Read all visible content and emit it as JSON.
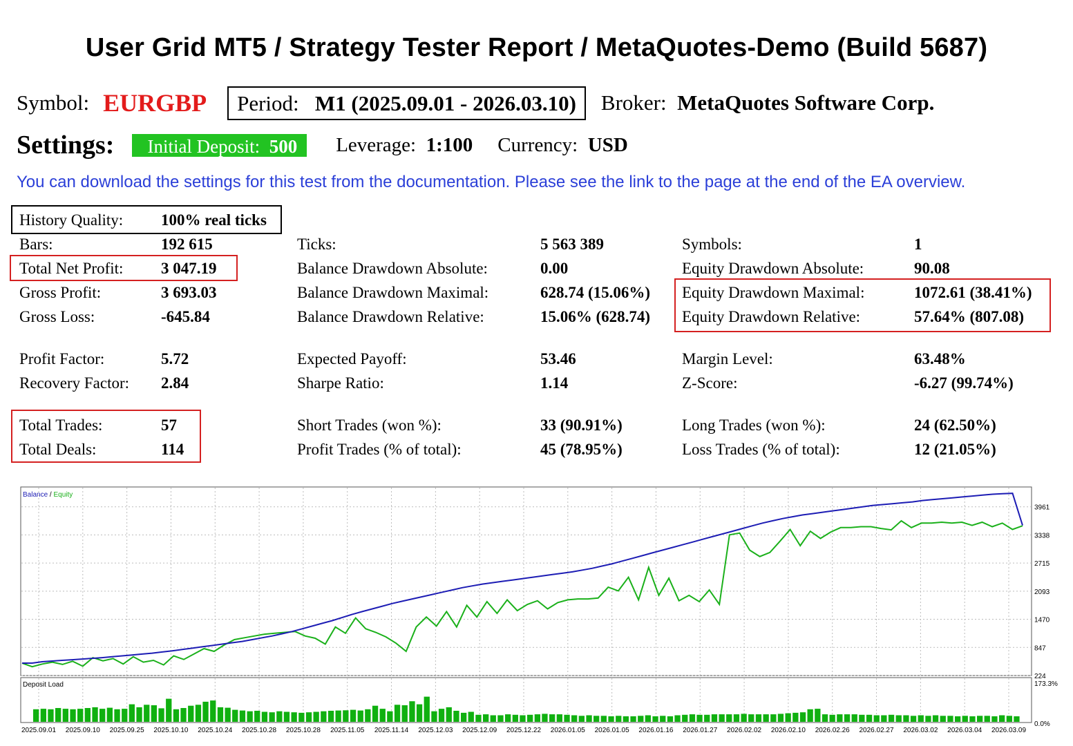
{
  "report": {
    "title": "User Grid MT5  /  Strategy Tester Report  /  MetaQuotes-Demo (Build 5687)",
    "symbol_label": "Symbol:",
    "symbol": "EURGBP",
    "period_label": "Period:",
    "period": "M1 (2025.09.01 - 2026.03.10)",
    "broker_label": "Broker:",
    "broker": "MetaQuotes Software Corp.",
    "settings_label": "Settings:",
    "deposit_label": "Initial Deposit:",
    "deposit": "500",
    "leverage_label": "Leverage:",
    "leverage": "1:100",
    "currency_label": "Currency:",
    "currency": "USD",
    "note": "You can download the settings for this test from the documentation. Please see the link to the page at the end of the EA overview."
  },
  "stats": [
    {
      "label": "History Quality:",
      "value": "100% real ticks"
    },
    {
      "label": "Bars:",
      "value": "192 615"
    },
    {
      "label": "Total Net Profit:",
      "value": "3 047.19"
    },
    {
      "label": "Gross Profit:",
      "value": "3 693.03"
    },
    {
      "label": "Gross Loss:",
      "value": "-645.84"
    },
    {
      "label": "Profit Factor:",
      "value": "5.72"
    },
    {
      "label": "Recovery Factor:",
      "value": "2.84"
    },
    {
      "label": "Total Trades:",
      "value": "57"
    },
    {
      "label": "Total Deals:",
      "value": "114"
    },
    {
      "label": "Ticks:",
      "value": "5 563 389"
    },
    {
      "label": "Balance Drawdown Absolute:",
      "value": "0.00"
    },
    {
      "label": "Balance Drawdown Maximal:",
      "value": "628.74 (15.06%)"
    },
    {
      "label": "Balance Drawdown Relative:",
      "value": "15.06% (628.74)"
    },
    {
      "label": "Expected Payoff:",
      "value": "53.46"
    },
    {
      "label": "Sharpe Ratio:",
      "value": "1.14"
    },
    {
      "label": "Short Trades (won %):",
      "value": "33 (90.91%)"
    },
    {
      "label": "Profit Trades (% of total):",
      "value": "45 (78.95%)"
    },
    {
      "label": "Symbols:",
      "value": "1"
    },
    {
      "label": "Equity Drawdown Absolute:",
      "value": "90.08"
    },
    {
      "label": "Equity Drawdown Maximal:",
      "value": "1072.61 (38.41%)"
    },
    {
      "label": "Equity Drawdown Relative:",
      "value": "57.64% (807.08)"
    },
    {
      "label": "Margin Level:",
      "value": "63.48%"
    },
    {
      "label": "Z-Score:",
      "value": "-6.27 (99.74%)"
    },
    {
      "label": "Long Trades (won %):",
      "value": "24 (62.50%)"
    },
    {
      "label": "Loss Trades (% of total):",
      "value": "12 (21.05%)"
    }
  ],
  "chart_data": {
    "type": "line",
    "legend": {
      "balance": "Balance",
      "separator": " / ",
      "equity": "Equity"
    },
    "y_ticks": [
      "3961",
      "3338",
      "2715",
      "2093",
      "1470",
      "847",
      "224"
    ],
    "y_tick_values": [
      3961,
      3338,
      2715,
      2093,
      1470,
      847,
      224
    ],
    "ylim": [
      224,
      4400
    ],
    "grid": true,
    "series": [
      {
        "name": "Balance",
        "color": "#1c1cb4",
        "values": [
          500,
          500,
          530,
          545,
          560,
          575,
          590,
          605,
          620,
          640,
          660,
          680,
          700,
          720,
          745,
          770,
          800,
          830,
          860,
          890,
          920,
          950,
          980,
          1020,
          1060,
          1100,
          1150,
          1200,
          1260,
          1320,
          1380,
          1440,
          1510,
          1580,
          1640,
          1700,
          1760,
          1820,
          1870,
          1920,
          1970,
          2020,
          2070,
          2120,
          2170,
          2210,
          2250,
          2280,
          2310,
          2340,
          2370,
          2400,
          2430,
          2460,
          2490,
          2520,
          2560,
          2600,
          2650,
          2700,
          2760,
          2820,
          2880,
          2940,
          3000,
          3060,
          3120,
          3180,
          3240,
          3300,
          3360,
          3420,
          3480,
          3540,
          3600,
          3650,
          3700,
          3740,
          3780,
          3810,
          3840,
          3870,
          3900,
          3930,
          3960,
          3990,
          4010,
          4030,
          4050,
          4070,
          4100,
          4120,
          4140,
          4160,
          4180,
          4200,
          4220,
          4240,
          4250,
          4260,
          3550
        ]
      },
      {
        "name": "Equity",
        "color": "#1ab01a",
        "values": [
          500,
          420,
          480,
          520,
          470,
          540,
          430,
          620,
          550,
          600,
          480,
          640,
          520,
          560,
          460,
          660,
          580,
          700,
          820,
          760,
          900,
          1020,
          1060,
          1100,
          1140,
          1160,
          1180,
          1200,
          1100,
          1050,
          920,
          1300,
          1160,
          1500,
          1260,
          1180,
          1080,
          940,
          760,
          1300,
          1520,
          1320,
          1640,
          1300,
          1780,
          1520,
          1860,
          1600,
          1900,
          1660,
          1800,
          1880,
          1700,
          1840,
          1900,
          1920,
          1920,
          1940,
          2180,
          2100,
          2400,
          1900,
          2620,
          2000,
          2380,
          1880,
          2000,
          1860,
          2120,
          1800,
          3340,
          3380,
          3000,
          2860,
          2950,
          3200,
          3460,
          3100,
          3420,
          3260,
          3400,
          3500,
          3500,
          3520,
          3520,
          3480,
          3450,
          3650,
          3500,
          3600,
          3600,
          3620,
          3600,
          3620,
          3550,
          3620,
          3520,
          3600,
          3460,
          3540
        ]
      }
    ],
    "deposit_load": {
      "label": "Deposit Load",
      "y_ticks": [
        "173.3%",
        "0.0%"
      ],
      "ylim": [
        0,
        173.3
      ],
      "values": [
        50,
        52,
        50,
        55,
        52,
        50,
        52,
        55,
        58,
        52,
        56,
        50,
        52,
        70,
        58,
        68,
        66,
        54,
        92,
        50,
        55,
        64,
        68,
        80,
        85,
        58,
        56,
        48,
        45,
        42,
        44,
        40,
        38,
        42,
        40,
        38,
        36,
        38,
        40,
        42,
        44,
        45,
        46,
        48,
        45,
        50,
        64,
        52,
        42,
        68,
        66,
        82,
        70,
        100,
        42,
        52,
        58,
        44,
        36,
        40,
        28,
        30,
        26,
        26,
        30,
        28,
        26,
        28,
        30,
        32,
        30,
        30,
        28,
        26,
        24,
        26,
        24,
        24,
        22,
        24,
        22,
        22,
        24,
        26,
        22,
        24,
        22,
        26,
        28,
        30,
        28,
        28,
        30,
        30,
        30,
        30,
        32,
        30,
        30,
        30,
        30,
        32,
        34,
        36,
        38,
        50,
        52,
        30,
        28,
        30,
        30,
        30,
        28,
        28,
        26,
        26,
        28,
        26,
        26,
        24,
        26,
        24,
        26,
        24,
        24,
        22,
        24,
        22,
        24,
        24,
        22,
        26,
        24,
        22
      ],
      "color": "#10b010"
    },
    "x_ticks": [
      "2025.09.01",
      "2025.09.10",
      "2025.09.25",
      "2025.10.10",
      "2025.10.24",
      "2025.10.28",
      "2025.10.28",
      "2025.11.05",
      "2025.11.14",
      "2025.12.03",
      "2025.12.09",
      "2025.12.22",
      "2026.01.05",
      "2026.01.05",
      "2026.01.16",
      "2026.01.27",
      "2026.02.02",
      "2026.02.10",
      "2026.02.26",
      "2026.02.27",
      "2026.03.02",
      "2026.03.04",
      "2026.03.09"
    ]
  }
}
